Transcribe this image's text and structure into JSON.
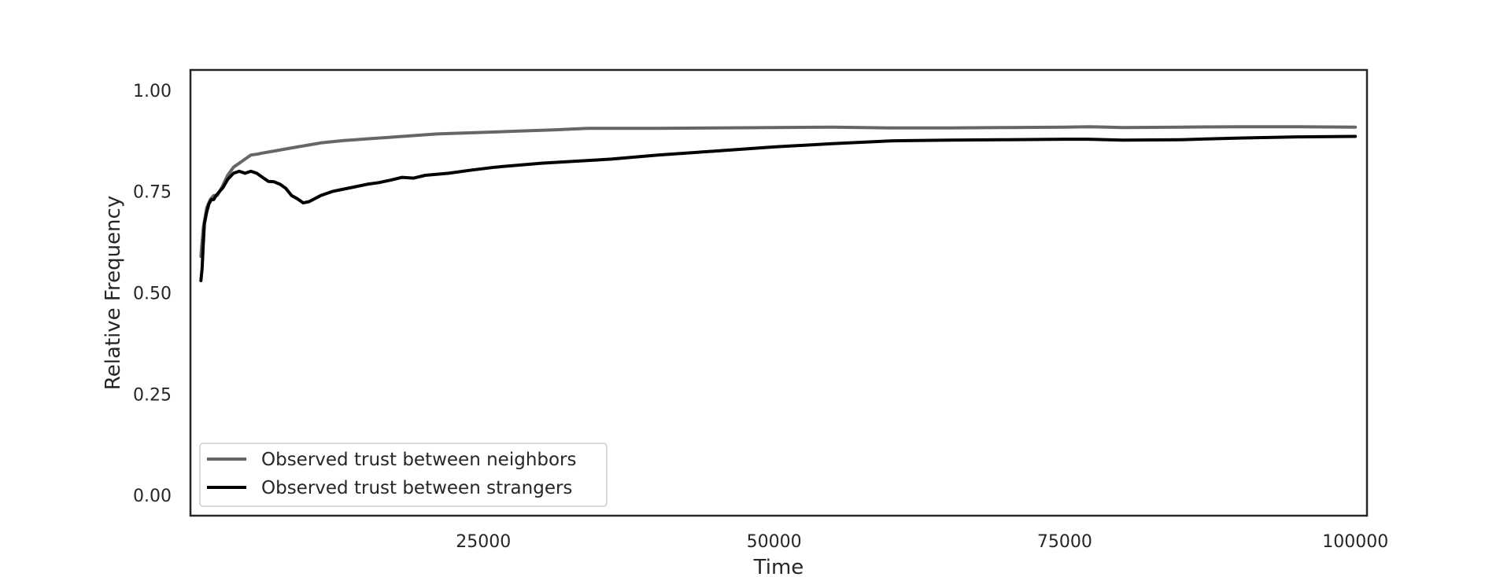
{
  "chart_data": {
    "type": "line",
    "title": "",
    "xlabel": "Time",
    "ylabel": "Relative Frequency",
    "xlim": [
      -200,
      101000
    ],
    "ylim": [
      -0.05,
      1.05
    ],
    "xticks": [
      25000,
      50000,
      75000,
      100000
    ],
    "xtick_labels": [
      "25000",
      "50000",
      "75000",
      "100000"
    ],
    "yticks": [
      0.0,
      0.25,
      0.5,
      0.75,
      1.0
    ],
    "ytick_labels": [
      "0.00",
      "0.25",
      "0.50",
      "0.75",
      "1.00"
    ],
    "grid": false,
    "legend_position": "lower-left",
    "series": [
      {
        "name": "Observed trust between neighbors",
        "color": "#666666",
        "x": [
          700,
          900,
          1200,
          1500,
          1800,
          2100,
          2500,
          3000,
          3500,
          4000,
          4500,
          5000,
          5500,
          6000,
          7000,
          8000,
          9000,
          10000,
          11000,
          12000,
          13000,
          14000,
          15000,
          17000,
          19000,
          21000,
          23000,
          25000,
          28000,
          31000,
          34000,
          37000,
          40000,
          45000,
          50000,
          55000,
          60000,
          65000,
          70000,
          75000,
          77000,
          80000,
          85000,
          90000,
          95000,
          100000
        ],
        "values": [
          0.59,
          0.66,
          0.71,
          0.73,
          0.74,
          0.74,
          0.76,
          0.79,
          0.81,
          0.82,
          0.83,
          0.84,
          0.842,
          0.845,
          0.85,
          0.855,
          0.86,
          0.865,
          0.87,
          0.873,
          0.876,
          0.878,
          0.88,
          0.884,
          0.888,
          0.892,
          0.894,
          0.896,
          0.899,
          0.902,
          0.906,
          0.906,
          0.906,
          0.907,
          0.908,
          0.909,
          0.907,
          0.907,
          0.908,
          0.909,
          0.91,
          0.908,
          0.909,
          0.91,
          0.91,
          0.909
        ]
      },
      {
        "name": "Observed trust between strangers",
        "color": "#000000",
        "x": [
          700,
          800,
          900,
          1000,
          1200,
          1400,
          1600,
          1800,
          2000,
          2300,
          2600,
          3000,
          3500,
          4000,
          4500,
          5000,
          5500,
          6000,
          6500,
          7000,
          7500,
          8000,
          8500,
          9000,
          9500,
          10000,
          11000,
          12000,
          13000,
          14000,
          15000,
          16000,
          17000,
          18000,
          19000,
          20000,
          22000,
          24000,
          26000,
          28000,
          30000,
          33000,
          36000,
          40000,
          45000,
          50000,
          55000,
          60000,
          65000,
          70000,
          75000,
          77000,
          80000,
          85000,
          90000,
          95000,
          100000
        ],
        "values": [
          0.53,
          0.56,
          0.62,
          0.67,
          0.7,
          0.72,
          0.73,
          0.73,
          0.74,
          0.75,
          0.76,
          0.78,
          0.795,
          0.8,
          0.795,
          0.8,
          0.795,
          0.785,
          0.775,
          0.774,
          0.768,
          0.758,
          0.74,
          0.732,
          0.722,
          0.725,
          0.74,
          0.75,
          0.756,
          0.762,
          0.768,
          0.772,
          0.778,
          0.785,
          0.783,
          0.79,
          0.795,
          0.803,
          0.81,
          0.815,
          0.82,
          0.825,
          0.83,
          0.84,
          0.85,
          0.86,
          0.868,
          0.875,
          0.877,
          0.878,
          0.879,
          0.879,
          0.877,
          0.878,
          0.882,
          0.885,
          0.886
        ]
      }
    ]
  }
}
